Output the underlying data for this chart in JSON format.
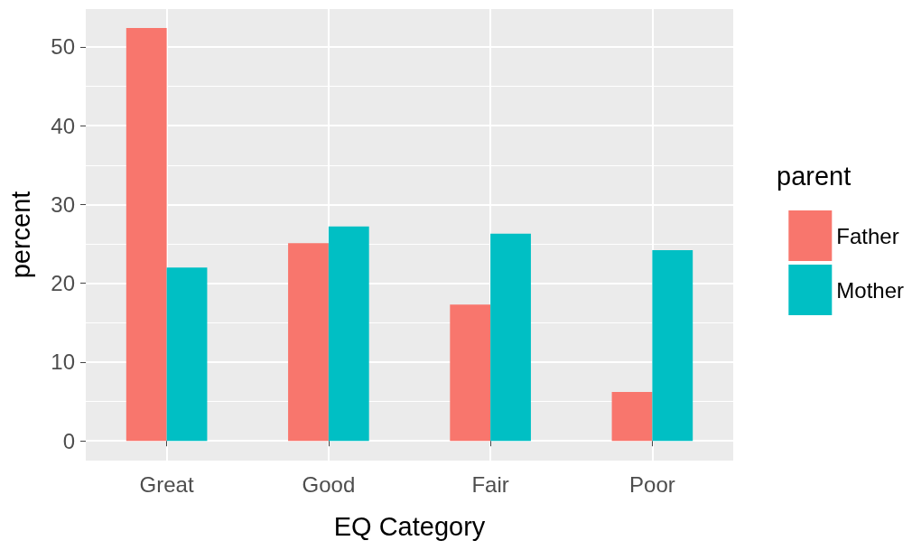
{
  "chart_data": {
    "type": "bar",
    "xlabel": "EQ Category",
    "ylabel": "percent",
    "legend_title": "parent",
    "categories": [
      "Great",
      "Good",
      "Fair",
      "Poor"
    ],
    "series": [
      {
        "name": "Father",
        "color": "#f8766d",
        "values": [
          52.4,
          25.1,
          17.3,
          6.2
        ]
      },
      {
        "name": "Mother",
        "color": "#00bfc4",
        "values": [
          22.0,
          27.2,
          26.3,
          24.2
        ]
      }
    ],
    "ylim": [
      -2.5,
      54.8
    ],
    "yticks": [
      0,
      10,
      20,
      30,
      40,
      50
    ],
    "grid": true,
    "legend": "right"
  }
}
